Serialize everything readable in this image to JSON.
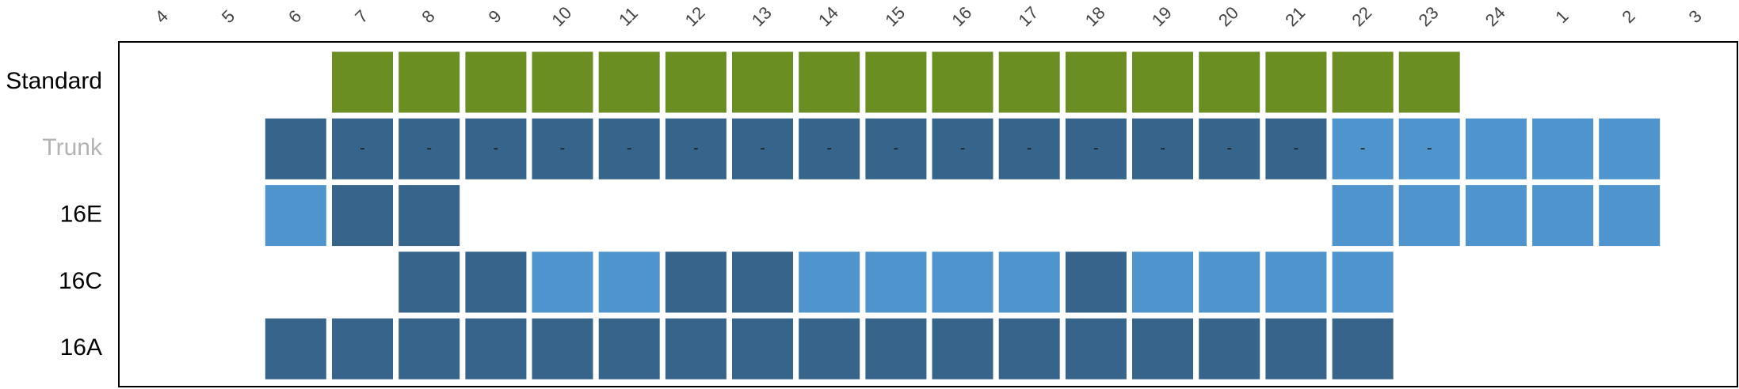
{
  "chart_data": {
    "type": "heatmap",
    "columns": [
      "4",
      "5",
      "6",
      "7",
      "8",
      "9",
      "10",
      "11",
      "12",
      "13",
      "14",
      "15",
      "16",
      "17",
      "18",
      "19",
      "20",
      "21",
      "22",
      "23",
      "24",
      "1",
      "2",
      "3"
    ],
    "rows": [
      {
        "label": "Standard",
        "label_color": "#000000",
        "cells": [
          null,
          null,
          null,
          "std",
          "std",
          "std",
          "std",
          "std",
          "std",
          "std",
          "std",
          "std",
          "std",
          "std",
          "std",
          "std",
          "std",
          "std",
          "std",
          "std",
          null,
          null,
          null,
          null
        ],
        "marks": [
          "",
          "",
          "",
          "",
          "",
          "",
          "",
          "",
          "",
          "",
          "",
          "",
          "",
          "",
          "",
          "",
          "",
          "",
          "",
          "",
          "",
          "",
          "",
          ""
        ]
      },
      {
        "label": "Trunk",
        "label_color": "#b3b3b3",
        "cells": [
          null,
          null,
          "dark",
          "dark",
          "dark",
          "dark",
          "dark",
          "dark",
          "dark",
          "dark",
          "dark",
          "dark",
          "dark",
          "dark",
          "dark",
          "dark",
          "dark",
          "dark",
          "light",
          "light",
          "light",
          "light",
          "light",
          null
        ],
        "marks": [
          "",
          "",
          "",
          "-",
          "-",
          "-",
          "-",
          "-",
          "-",
          "-",
          "-",
          "-",
          "-",
          "-",
          "-",
          "-",
          "-",
          "-",
          "-",
          "-",
          "",
          "",
          "",
          ""
        ]
      },
      {
        "label": "16E",
        "label_color": "#000000",
        "cells": [
          null,
          null,
          "light",
          "dark",
          "dark",
          null,
          null,
          null,
          null,
          null,
          null,
          null,
          null,
          null,
          null,
          null,
          null,
          null,
          "light",
          "light",
          "light",
          "light",
          "light",
          null
        ],
        "marks": [
          "",
          "",
          "",
          "",
          "",
          "",
          "",
          "",
          "",
          "",
          "",
          "",
          "",
          "",
          "",
          "",
          "",
          "",
          "",
          "",
          "",
          "",
          "",
          ""
        ]
      },
      {
        "label": "16C",
        "label_color": "#000000",
        "cells": [
          null,
          null,
          null,
          null,
          "dark",
          "dark",
          "light",
          "light",
          "dark",
          "dark",
          "light",
          "light",
          "light",
          "light",
          "dark",
          "light",
          "light",
          "light",
          "light",
          null,
          null,
          null,
          null,
          null
        ],
        "marks": [
          "",
          "",
          "",
          "",
          "",
          "",
          "",
          "",
          "",
          "",
          "",
          "",
          "",
          "",
          "",
          "",
          "",
          "",
          "",
          "",
          "",
          "",
          "",
          ""
        ]
      },
      {
        "label": "16A",
        "label_color": "#000000",
        "cells": [
          null,
          null,
          "dark",
          "dark",
          "dark",
          "dark",
          "dark",
          "dark",
          "dark",
          "dark",
          "dark",
          "dark",
          "dark",
          "dark",
          "dark",
          "dark",
          "dark",
          "dark",
          "dark",
          null,
          null,
          null,
          null,
          null
        ],
        "marks": [
          "",
          "",
          "",
          "",
          "",
          "",
          "",
          "",
          "",
          "",
          "",
          "",
          "",
          "",
          "",
          "",
          "",
          "",
          "",
          "",
          "",
          "",
          "",
          ""
        ]
      }
    ],
    "colors": {
      "std": "#6b8e23",
      "dark": "#36648b",
      "light": "#4f94cd",
      "border": "#000000",
      "background": "#ffffff"
    },
    "legend": "none",
    "grid": false
  }
}
